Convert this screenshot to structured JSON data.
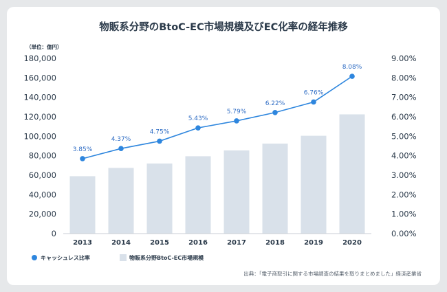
{
  "title": "物販系分野のBtoC-EC市場規模及びEC化率の経年推移",
  "unit_label": "（単位：億円）",
  "source": "出典：「電子商取引に関する市場調査の結果を取りまとめました」経済産業省",
  "colors": {
    "bar": "#d9e1ea",
    "line": "#2e86de",
    "text": "#2b3a4a",
    "grid": "#c9ced4",
    "background": "#e6e8ea"
  },
  "chart_data": {
    "type": "bar",
    "title": "物販系分野のBtoC-EC市場規模及びEC化率の経年推移",
    "categories": [
      "2013",
      "2014",
      "2015",
      "2016",
      "2017",
      "2018",
      "2019",
      "2020"
    ],
    "series": [
      {
        "name": "物販系分野BtoC-EC市場規模",
        "type": "bar",
        "axis": "left",
        "values": [
          59000,
          67500,
          72000,
          79500,
          85500,
          92500,
          100500,
          122500
        ]
      },
      {
        "name": "キャッシュレス比率",
        "type": "line",
        "axis": "right",
        "values": [
          3.85,
          4.37,
          4.75,
          5.43,
          5.79,
          6.22,
          6.76,
          8.08
        ],
        "labels": [
          "3.85%",
          "4.37%",
          "4.75%",
          "5.43%",
          "5.79%",
          "6.22%",
          "6.76%",
          "8.08%"
        ]
      }
    ],
    "y_left": {
      "min": 0,
      "max": 180000,
      "ticks": [
        "0",
        "20,000",
        "40,000",
        "60,000",
        "80,000",
        "100,000",
        "120,000",
        "140,000",
        "160,000",
        "180,000"
      ]
    },
    "y_right": {
      "min": 0,
      "max": 9,
      "ticks": [
        "0.00%",
        "1.00%",
        "2.00%",
        "3.00%",
        "4.00%",
        "5.00%",
        "6.00%",
        "7.00%",
        "8.00%",
        "9.00%"
      ]
    },
    "legend": {
      "position": "bottom-left",
      "items": [
        "キャッシュレス比率",
        "物販系分野BtoC-EC市場規模"
      ]
    },
    "grid": false
  }
}
